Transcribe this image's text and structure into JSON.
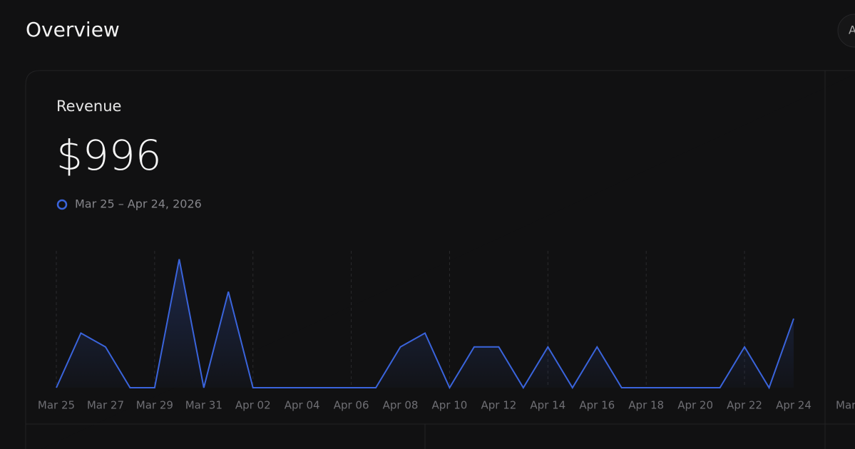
{
  "header": {
    "title": "Overview",
    "action_label": "A"
  },
  "card": {
    "title": "Revenue",
    "total": "$996",
    "range_label": "Mar 25 – Apr 24, 2026"
  },
  "side_card": {
    "axis_label": "Mar"
  },
  "chart_data": {
    "type": "line",
    "categories": [
      "Mar 25",
      null,
      "Mar 27",
      null,
      "Mar 29",
      null,
      "Mar 31",
      null,
      "Apr 02",
      null,
      "Apr 04",
      null,
      "Apr 06",
      null,
      "Apr 08",
      null,
      "Apr 10",
      null,
      "Apr 12",
      null,
      "Apr 14",
      null,
      "Apr 16",
      null,
      "Apr 18",
      null,
      "Apr 20",
      null,
      "Apr 22",
      null,
      "Apr 24"
    ],
    "values": [
      0,
      79,
      59,
      0,
      0,
      186,
      0,
      139,
      0,
      0,
      0,
      0,
      0,
      0,
      59,
      79,
      0,
      59,
      59,
      0,
      59,
      0,
      59,
      0,
      0,
      0,
      0,
      0,
      59,
      0,
      100
    ],
    "color": "#3a64dc",
    "ylim": [
      0,
      198
    ],
    "grid": true
  }
}
